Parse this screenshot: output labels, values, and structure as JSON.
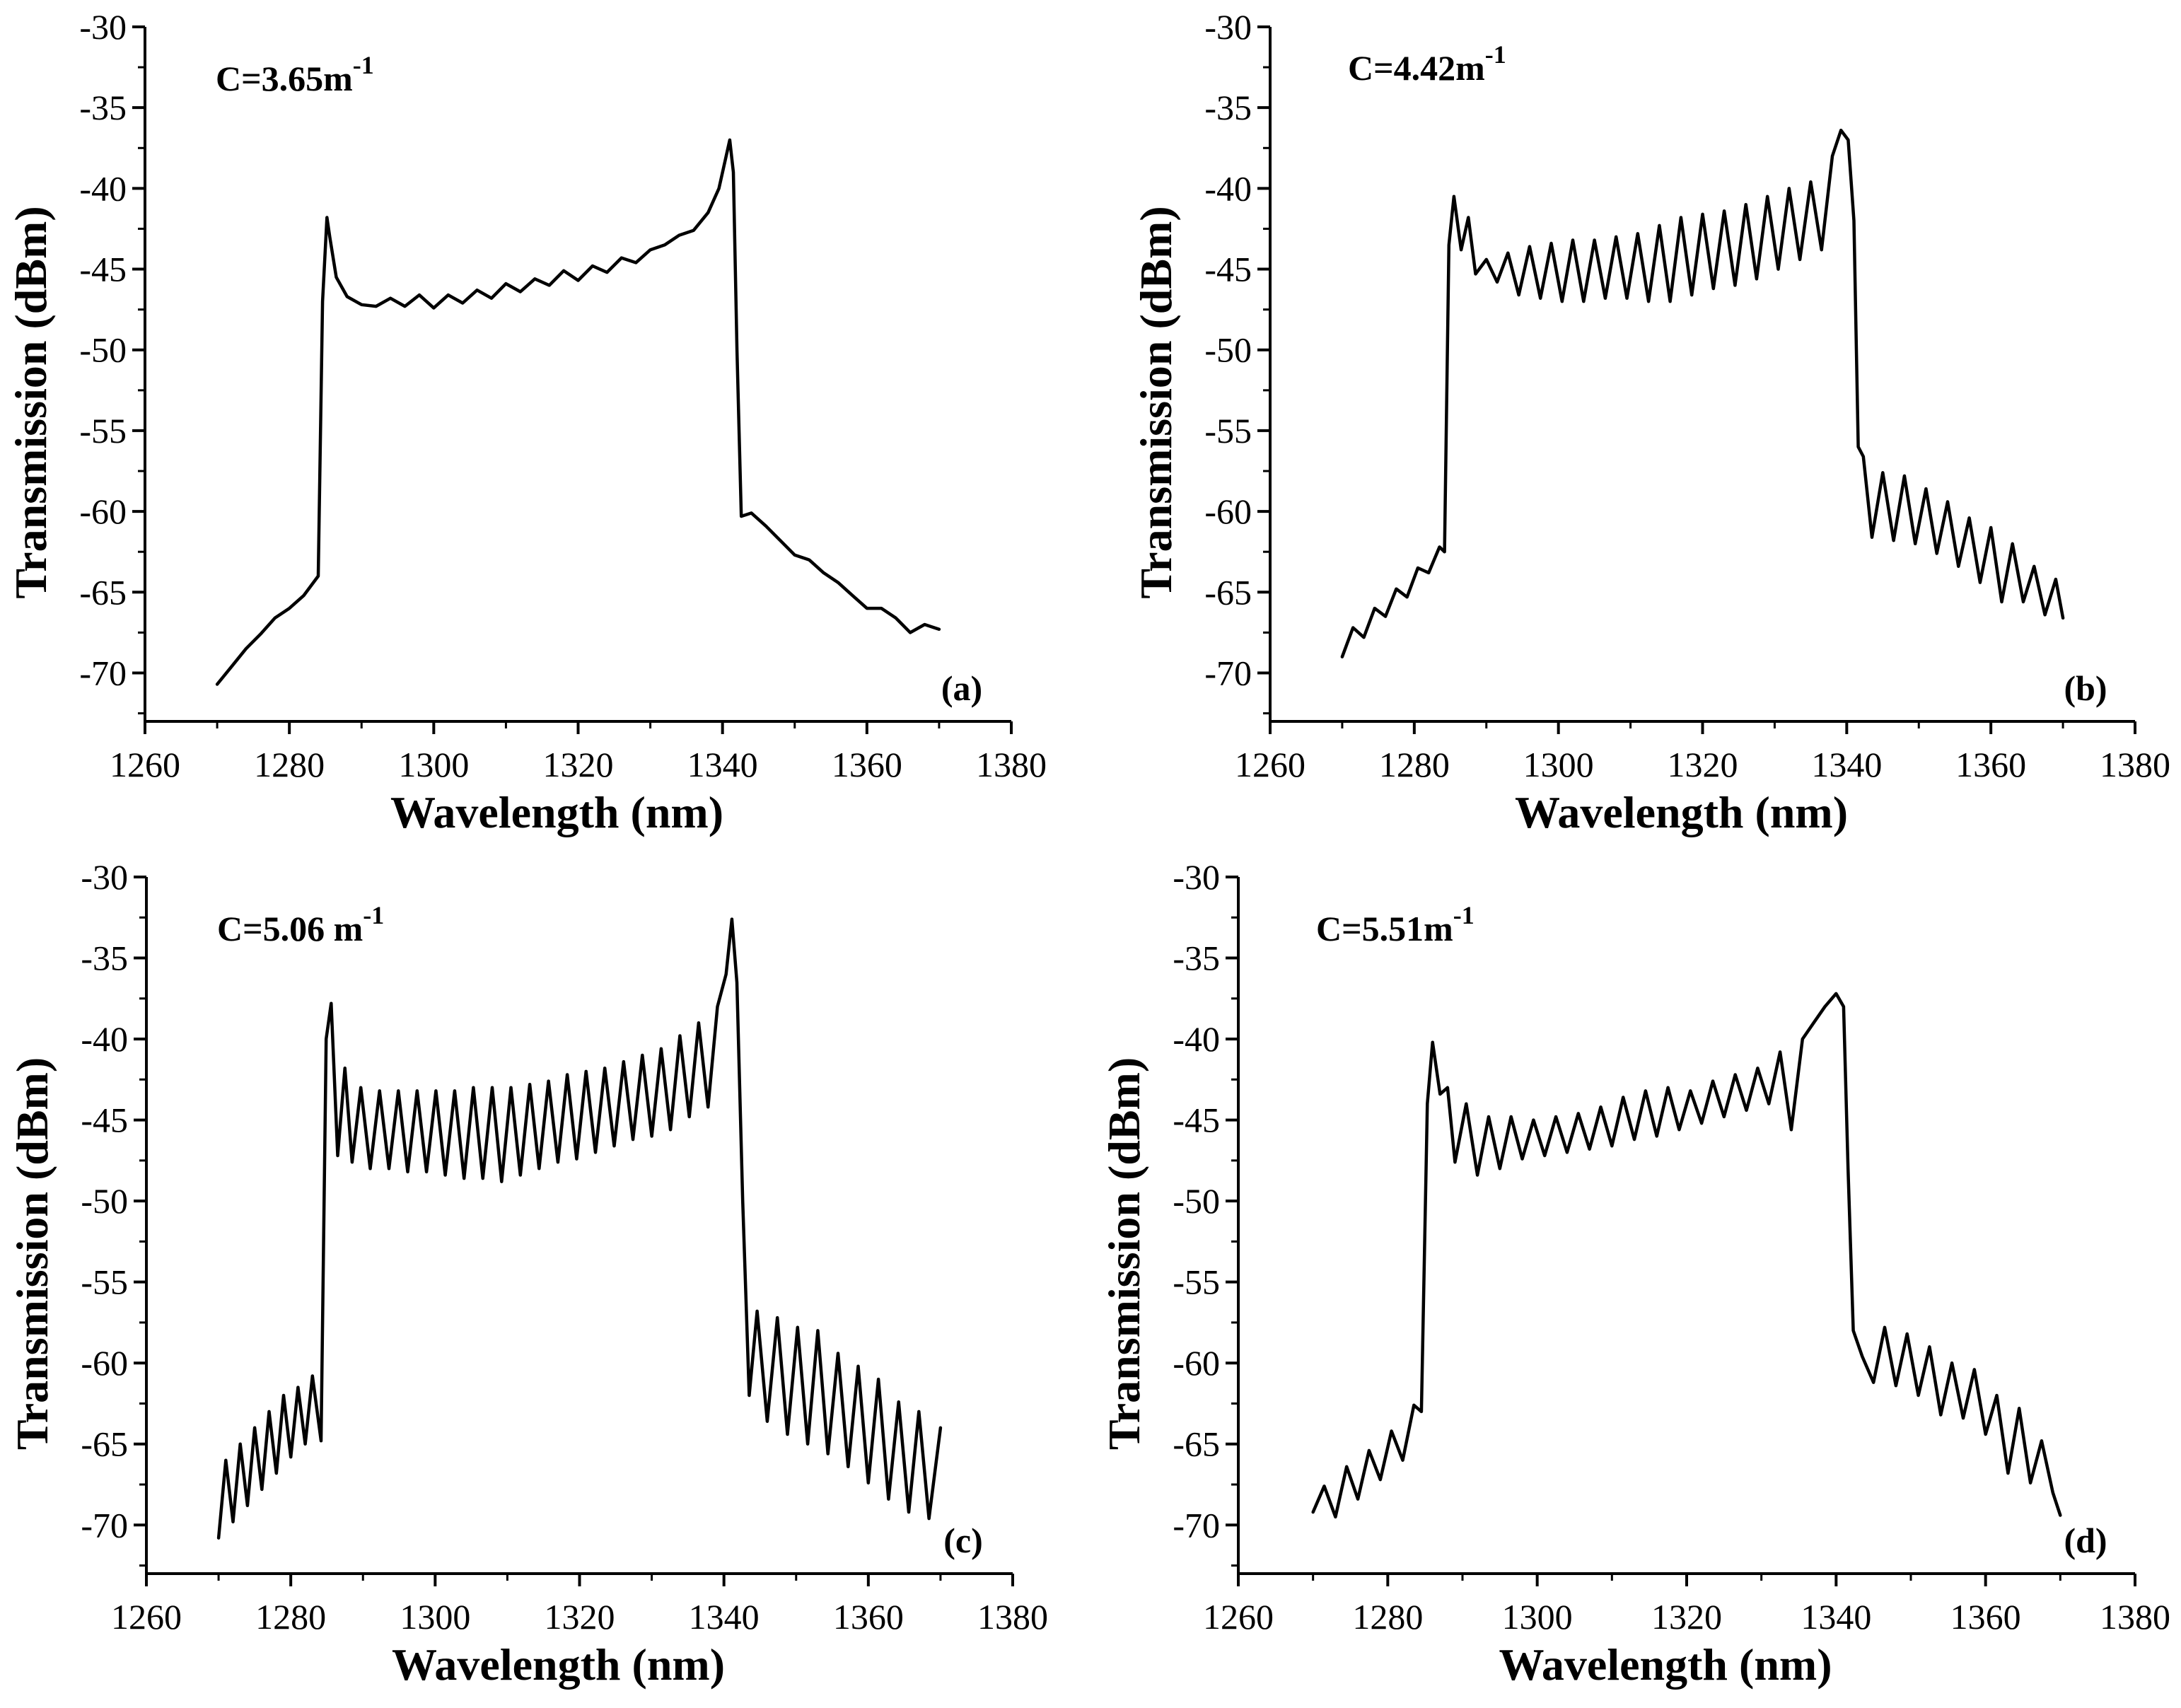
{
  "chart_data": [
    {
      "type": "line",
      "panel_label": "(a)",
      "annotation": {
        "base": "C=3.65m",
        "exponent": "-1"
      },
      "xlabel": "Wavelength (nm)",
      "ylabel": "Transmission (dBm)",
      "xlim": [
        1260,
        1380
      ],
      "ylim": [
        -73,
        -30
      ],
      "xticks": [
        1260,
        1280,
        1300,
        1320,
        1340,
        1360,
        1380
      ],
      "yticks": [
        -30,
        -35,
        -40,
        -45,
        -50,
        -55,
        -60,
        -65,
        -70
      ],
      "series": [
        {
          "name": "C=3.65m-1",
          "x": [
            1270,
            1272,
            1274,
            1276,
            1278,
            1280,
            1282,
            1284,
            1284.6,
            1285.2,
            1285.6,
            1286.5,
            1288,
            1290,
            1292,
            1294,
            1296,
            1298,
            1300,
            1302,
            1304,
            1306,
            1308,
            1310,
            1312,
            1314,
            1316,
            1318,
            1320,
            1322,
            1324,
            1326,
            1328,
            1330,
            1332,
            1334,
            1336,
            1338,
            1339.5,
            1340.5,
            1341.0,
            1341.5,
            1342,
            1342.6,
            1344,
            1346,
            1348,
            1350,
            1352,
            1354,
            1356,
            1358,
            1360,
            1362,
            1364,
            1366,
            1368,
            1370
          ],
          "y": [
            -70.7,
            -69.6,
            -68.5,
            -67.6,
            -66.6,
            -66.0,
            -65.2,
            -64.0,
            -47.0,
            -41.8,
            -43.0,
            -45.5,
            -46.7,
            -47.2,
            -47.3,
            -46.8,
            -47.3,
            -46.6,
            -47.4,
            -46.6,
            -47.1,
            -46.3,
            -46.8,
            -45.9,
            -46.4,
            -45.6,
            -46.0,
            -45.1,
            -45.7,
            -44.8,
            -45.2,
            -44.3,
            -44.6,
            -43.8,
            -43.5,
            -42.9,
            -42.6,
            -41.5,
            -40.0,
            -38.0,
            -37.0,
            -39.0,
            -50.0,
            -60.3,
            -60.1,
            -60.9,
            -61.8,
            -62.7,
            -63.0,
            -63.8,
            -64.4,
            -65.2,
            -66.0,
            -66.0,
            -66.6,
            -67.5,
            -67.0,
            -67.3
          ]
        }
      ]
    },
    {
      "type": "line",
      "panel_label": "(b)",
      "annotation": {
        "base": "C=4.42m",
        "exponent": "-1"
      },
      "xlabel": "Wavelength (nm)",
      "ylabel": "Transmission (dBm)",
      "xlim": [
        1260,
        1380
      ],
      "ylim": [
        -73,
        -30
      ],
      "xticks": [
        1260,
        1280,
        1300,
        1320,
        1340,
        1360,
        1380
      ],
      "yticks": [
        -30,
        -35,
        -40,
        -45,
        -50,
        -55,
        -60,
        -65,
        -70
      ],
      "series": [
        {
          "name": "C=4.42m-1",
          "x": [
            1270,
            1271.5,
            1273,
            1274.5,
            1276,
            1277.5,
            1279,
            1280.5,
            1282,
            1283.5,
            1284.2,
            1284.8,
            1285.5,
            1286.5,
            1287.5,
            1288.5,
            1290,
            1291.5,
            1293,
            1294.5,
            1296,
            1297.5,
            1299,
            1300.5,
            1302,
            1303.5,
            1305,
            1306.5,
            1308,
            1309.5,
            1311,
            1312.5,
            1314,
            1315.5,
            1317,
            1318.5,
            1320,
            1321.5,
            1323,
            1324.5,
            1326,
            1327.5,
            1329,
            1330.5,
            1332,
            1333.5,
            1335,
            1336.5,
            1338,
            1339.2,
            1340.2,
            1341.0,
            1341.6,
            1342.3,
            1343.5,
            1345,
            1346.5,
            1348,
            1349.5,
            1351,
            1352.5,
            1354,
            1355.5,
            1357,
            1358.5,
            1360,
            1361.5,
            1363,
            1364.5,
            1366,
            1367.5,
            1369,
            1370
          ],
          "y": [
            -69.0,
            -67.2,
            -67.8,
            -66.0,
            -66.5,
            -64.8,
            -65.3,
            -63.5,
            -63.8,
            -62.2,
            -62.5,
            -43.5,
            -40.5,
            -43.8,
            -41.8,
            -45.3,
            -44.4,
            -45.8,
            -44.0,
            -46.6,
            -43.6,
            -46.8,
            -43.4,
            -47.0,
            -43.2,
            -47.0,
            -43.2,
            -46.8,
            -43.0,
            -46.8,
            -42.8,
            -47.0,
            -42.3,
            -47.0,
            -41.8,
            -46.6,
            -41.6,
            -46.2,
            -41.4,
            -46.0,
            -41.0,
            -45.6,
            -40.5,
            -45.0,
            -40.0,
            -44.4,
            -39.6,
            -43.8,
            -38.0,
            -36.4,
            -37.0,
            -42.0,
            -56.0,
            -56.6,
            -61.6,
            -57.6,
            -61.8,
            -57.8,
            -62.0,
            -58.6,
            -62.6,
            -59.4,
            -63.4,
            -60.4,
            -64.4,
            -61.0,
            -65.6,
            -62.0,
            -65.6,
            -63.4,
            -66.4,
            -64.2,
            -66.6
          ]
        }
      ]
    },
    {
      "type": "line",
      "panel_label": "(c)",
      "annotation": {
        "base": "C=5.06 m",
        "exponent": "-1"
      },
      "xlabel": "Wavelength (nm)",
      "ylabel": "Transmission (dBm)",
      "xlim": [
        1260,
        1380
      ],
      "ylim": [
        -73,
        -30
      ],
      "xticks": [
        1260,
        1280,
        1300,
        1320,
        1340,
        1360,
        1380
      ],
      "yticks": [
        -30,
        -35,
        -40,
        -45,
        -50,
        -55,
        -60,
        -65,
        -70
      ],
      "series": [
        {
          "name": "C=5.06 m-1",
          "x": [
            1270,
            1271,
            1272,
            1273,
            1274,
            1275,
            1276,
            1277,
            1278,
            1279,
            1280,
            1281,
            1282,
            1283,
            1284.2,
            1284.9,
            1285.6,
            1286.5,
            1287.5,
            1288.5,
            1289.7,
            1291,
            1292.3,
            1293.6,
            1294.9,
            1296.2,
            1297.5,
            1298.8,
            1300.1,
            1301.4,
            1302.7,
            1304,
            1305.3,
            1306.6,
            1307.9,
            1309.2,
            1310.5,
            1311.8,
            1313.1,
            1314.4,
            1315.7,
            1317,
            1318.3,
            1319.6,
            1320.9,
            1322.2,
            1323.5,
            1324.8,
            1326.1,
            1327.4,
            1328.7,
            1330,
            1331.3,
            1332.6,
            1333.9,
            1335.2,
            1336.5,
            1337.8,
            1339.1,
            1340.3,
            1341.1,
            1341.8,
            1342.6,
            1343.5,
            1344.6,
            1346,
            1347.4,
            1348.8,
            1350.2,
            1351.6,
            1353,
            1354.4,
            1355.8,
            1357.2,
            1358.6,
            1360,
            1361.4,
            1362.8,
            1364.2,
            1365.6,
            1367,
            1368.4,
            1370
          ],
          "y": [
            -70.8,
            -66.0,
            -69.8,
            -65.0,
            -68.8,
            -64.0,
            -67.8,
            -63.0,
            -66.8,
            -62.0,
            -65.8,
            -61.5,
            -65.0,
            -60.8,
            -64.8,
            -40.0,
            -37.8,
            -47.2,
            -41.8,
            -47.6,
            -43.0,
            -48.0,
            -43.2,
            -48.0,
            -43.2,
            -48.2,
            -43.2,
            -48.2,
            -43.2,
            -48.4,
            -43.2,
            -48.6,
            -43.0,
            -48.6,
            -43.0,
            -48.8,
            -43.0,
            -48.4,
            -42.8,
            -48.0,
            -42.6,
            -47.6,
            -42.2,
            -47.4,
            -42.0,
            -47.0,
            -41.8,
            -46.6,
            -41.4,
            -46.2,
            -41.0,
            -46.0,
            -40.6,
            -45.6,
            -39.8,
            -44.8,
            -39.0,
            -44.2,
            -38.0,
            -36.0,
            -32.6,
            -36.5,
            -50.0,
            -62.0,
            -56.8,
            -63.6,
            -57.2,
            -64.4,
            -57.8,
            -65.0,
            -58.0,
            -65.6,
            -59.4,
            -66.4,
            -60.2,
            -67.4,
            -61.0,
            -68.4,
            -62.4,
            -69.2,
            -63.0,
            -69.6,
            -64.0
          ]
        }
      ]
    },
    {
      "type": "line",
      "panel_label": "(d)",
      "annotation": {
        "base": "C=5.51m",
        "exponent": "-1"
      },
      "xlabel": "Wavelength (nm)",
      "ylabel": "Transmission (dBm)",
      "xlim": [
        1260,
        1380
      ],
      "ylim": [
        -73,
        -30
      ],
      "xticks": [
        1260,
        1280,
        1300,
        1320,
        1340,
        1360,
        1380
      ],
      "yticks": [
        -30,
        -35,
        -40,
        -45,
        -50,
        -55,
        -60,
        -65,
        -70
      ],
      "series": [
        {
          "name": "C=5.51m-1",
          "x": [
            1270,
            1271.5,
            1273,
            1274.5,
            1276,
            1277.5,
            1279,
            1280.5,
            1282,
            1283.5,
            1284.5,
            1285.3,
            1286.0,
            1287.0,
            1288.0,
            1289,
            1290.5,
            1292,
            1293.5,
            1295,
            1296.5,
            1298,
            1299.5,
            1301,
            1302.5,
            1304,
            1305.5,
            1307,
            1308.5,
            1310,
            1311.5,
            1313,
            1314.5,
            1316,
            1317.5,
            1319,
            1320.5,
            1322,
            1323.5,
            1325,
            1326.5,
            1328,
            1329.5,
            1331,
            1332.5,
            1334,
            1335.5,
            1337,
            1338.5,
            1340,
            1341.0,
            1341.6,
            1342.3,
            1343.5,
            1345,
            1346.5,
            1348,
            1349.5,
            1351,
            1352.5,
            1354,
            1355.5,
            1357,
            1358.5,
            1360,
            1361.5,
            1363,
            1364.5,
            1366,
            1367.5,
            1369,
            1370
          ],
          "y": [
            -69.2,
            -67.6,
            -69.5,
            -66.4,
            -68.4,
            -65.4,
            -67.2,
            -64.2,
            -66.0,
            -62.6,
            -63.0,
            -44.0,
            -40.2,
            -43.4,
            -43.0,
            -47.6,
            -44.0,
            -48.4,
            -44.8,
            -48.0,
            -44.8,
            -47.4,
            -45.0,
            -47.2,
            -44.8,
            -47.0,
            -44.6,
            -46.8,
            -44.2,
            -46.6,
            -43.6,
            -46.2,
            -43.2,
            -46.0,
            -43.0,
            -45.6,
            -43.2,
            -45.2,
            -42.6,
            -44.8,
            -42.2,
            -44.4,
            -41.8,
            -44.0,
            -40.8,
            -45.6,
            -40.0,
            -39.0,
            -38.0,
            -37.2,
            -38.0,
            -48.0,
            -58.0,
            -59.6,
            -61.2,
            -57.8,
            -61.4,
            -58.2,
            -62.0,
            -59.0,
            -63.2,
            -60.0,
            -63.4,
            -60.4,
            -64.4,
            -62.0,
            -66.8,
            -62.8,
            -67.4,
            -64.8,
            -68.0,
            -69.4
          ]
        }
      ]
    }
  ]
}
